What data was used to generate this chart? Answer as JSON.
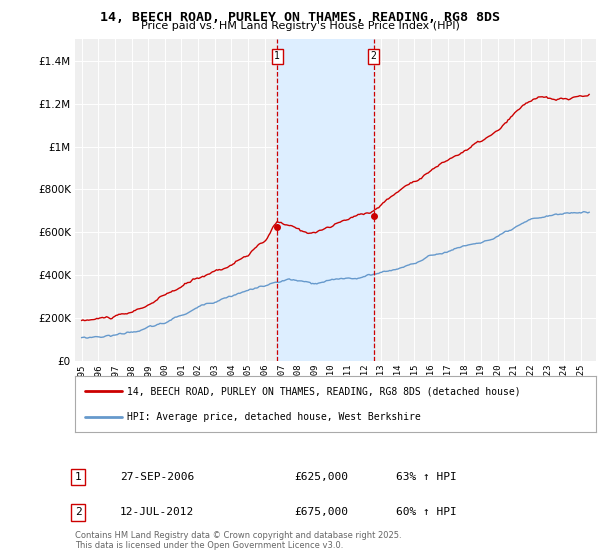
{
  "title": "14, BEECH ROAD, PURLEY ON THAMES, READING, RG8 8DS",
  "subtitle": "Price paid vs. HM Land Registry's House Price Index (HPI)",
  "red_label": "14, BEECH ROAD, PURLEY ON THAMES, READING, RG8 8DS (detached house)",
  "blue_label": "HPI: Average price, detached house, West Berkshire",
  "annotation1_num": "1",
  "annotation1_date": "27-SEP-2006",
  "annotation1_price": "£625,000",
  "annotation1_hpi": "63% ↑ HPI",
  "annotation2_num": "2",
  "annotation2_date": "12-JUL-2012",
  "annotation2_price": "£675,000",
  "annotation2_hpi": "60% ↑ HPI",
  "footer": "Contains HM Land Registry data © Crown copyright and database right 2025.\nThis data is licensed under the Open Government Licence v3.0.",
  "vline1_year": 2006.75,
  "vline2_year": 2012.54,
  "ylim_min": 0,
  "ylim_max": 1500000,
  "background_color": "#ffffff",
  "plot_bg_color": "#efefef",
  "red_color": "#cc0000",
  "blue_color": "#6699cc",
  "shade_color": "#ddeeff",
  "grid_color": "#ffffff"
}
